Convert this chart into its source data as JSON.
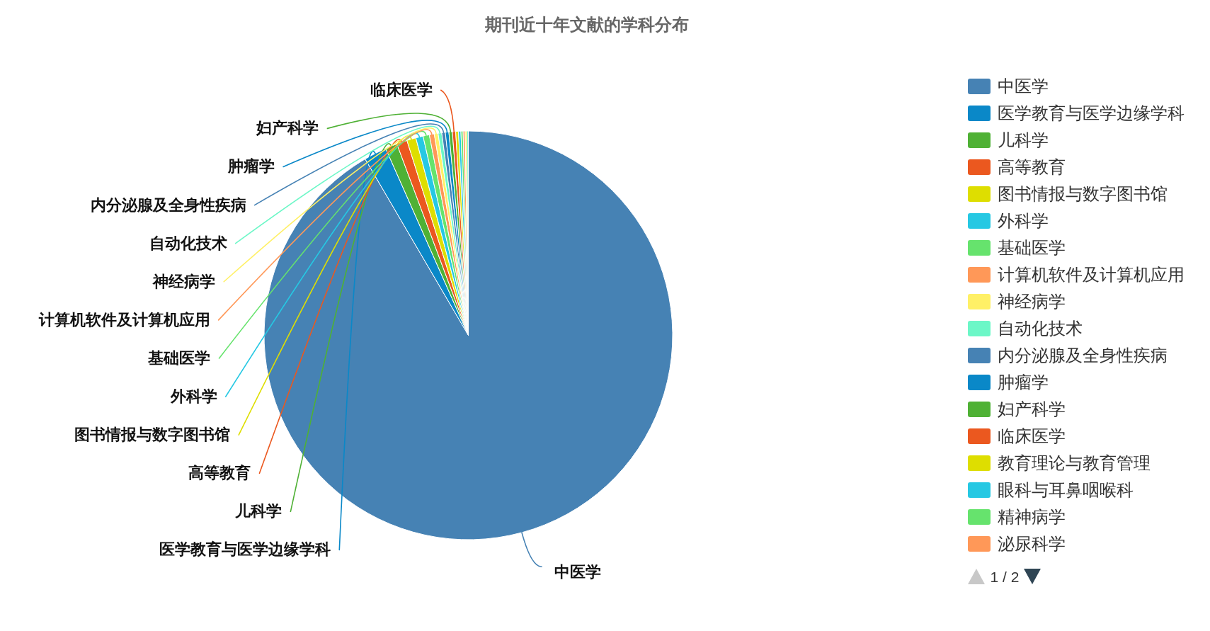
{
  "chart_data": {
    "type": "pie",
    "title": "期刊近十年文献的学科分布",
    "categories": [
      "中医学",
      "医学教育与医学边缘学科",
      "儿科学",
      "高等教育",
      "图书情报与数字图书馆",
      "外科学",
      "基础医学",
      "计算机软件及计算机应用",
      "神经病学",
      "自动化技术",
      "内分泌腺及全身性疾病",
      "肿瘤学",
      "妇产科学",
      "临床医学",
      "教育理论与教育管理",
      "眼科与耳鼻咽喉科",
      "精神病学",
      "泌尿科学",
      null,
      null
    ],
    "values": [
      91.57,
      1.8,
      0.94,
      0.83,
      0.72,
      0.58,
      0.5,
      0.39,
      0.3,
      0.29,
      0.28,
      0.28,
      0.27,
      0.26,
      0.22,
      0.19,
      0.17,
      0.16,
      0.14,
      0.11
    ],
    "colors": [
      "#4682b4",
      "#0a88c8",
      "#4fb135",
      "#eb581f",
      "#dede00",
      "#26c8e3",
      "#66e36d",
      "#ff9858",
      "#fff066",
      "#6cf7c7",
      "#4682b4",
      "#0a88c8",
      "#4fb135",
      "#eb581f",
      "#dede00",
      "#26c8e3",
      "#66e36d",
      "#ff9858",
      "#fff066",
      "#6cf7c7"
    ],
    "value_labels": [
      "中医学",
      "医学教育与医学边缘学科",
      "儿科学",
      "高等教育",
      "图书情报与数字图书馆",
      "外科学",
      "基础医学",
      "计算机软件及计算机应用",
      "神经病学",
      "自动化技术",
      "内分泌腺及全身性疾病",
      "肿瘤学",
      "妇产科学",
      "临床医学",
      null,
      null,
      null,
      null,
      null,
      null
    ],
    "legend": "right",
    "annotations": [
      "1 / 2"
    ]
  }
}
